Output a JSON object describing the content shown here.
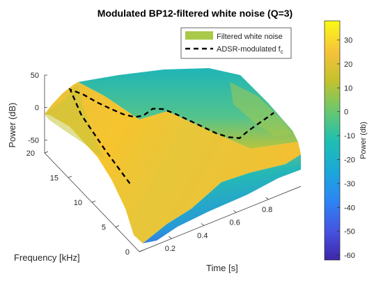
{
  "chart_data": {
    "type": "surface",
    "title": "Modulated BP12-filtered white noise (Q=3)",
    "x_label": "Time [s]",
    "y_label": "Frequency [kHz]",
    "z_label": "Power (dB)",
    "colorbar_label": "Power (db)",
    "x_ticks": [
      "0.2",
      "0.4",
      "0.6",
      "0.8"
    ],
    "y_ticks": [
      "0",
      "5",
      "10",
      "15",
      "20"
    ],
    "z_ticks": [
      "50",
      "0",
      "-50"
    ],
    "colorbar_ticks": [
      "30",
      "20",
      "10",
      "0",
      "-10",
      "-20",
      "-30",
      "-40",
      "-50",
      "-60"
    ],
    "colorbar_range": [
      -62,
      38
    ],
    "colormap": "parula",
    "x_range": [
      0,
      1
    ],
    "y_range": [
      0,
      20
    ],
    "z_range": [
      -70,
      50
    ],
    "legend": {
      "location": "top-right",
      "entries": [
        {
          "label": "Filtered white noise",
          "style": "patch",
          "color": "#a9c94a"
        },
        {
          "label": "ADSR-modulated f",
          "subscript": "c",
          "style": "dashed-line",
          "color": "#000000"
        }
      ]
    },
    "fc_curve": {
      "time": [
        0.0,
        0.02,
        0.05,
        0.1,
        0.15,
        0.2,
        0.25,
        0.3,
        0.35,
        0.4,
        0.45,
        0.5,
        0.55,
        0.6,
        0.65,
        0.7,
        0.75,
        0.8,
        0.85,
        0.9,
        0.95,
        1.0
      ],
      "frequency_khz": [
        2.0,
        8.0,
        14.0,
        18.0,
        17.0,
        15.8,
        14.6,
        13.6,
        12.9,
        12.8,
        12.5,
        12.0,
        11.2,
        10.0,
        8.8,
        7.6,
        6.7,
        6.1,
        6.0,
        5.9,
        5.8,
        5.7
      ],
      "power_db": [
        20,
        25,
        30,
        33,
        28,
        20,
        14,
        8,
        4,
        2,
        10,
        8,
        2,
        -4,
        -10,
        -16,
        -20,
        -22,
        -15,
        -10,
        -5,
        0
      ]
    }
  }
}
